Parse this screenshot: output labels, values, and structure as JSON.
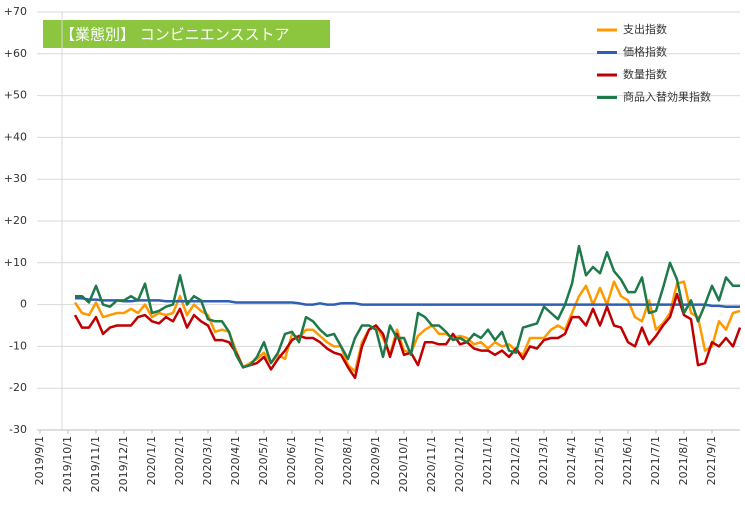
{
  "chart_data": {
    "type": "line",
    "title": "【業態別】 コンビニエンスストア",
    "categories": [
      "2019/9/1",
      null,
      null,
      null,
      "2019/10/1",
      null,
      null,
      null,
      "2019/11/1",
      null,
      null,
      null,
      "2019/12/1",
      null,
      null,
      null,
      "2020/1/1",
      null,
      null,
      null,
      "2020/2/1",
      null,
      null,
      null,
      "2020/3/1",
      null,
      null,
      null,
      "2020/4/1",
      null,
      null,
      null,
      "2020/5/1",
      null,
      null,
      null,
      "2020/6/1",
      null,
      null,
      null,
      "2020/7/1",
      null,
      null,
      null,
      "2020/8/1",
      null,
      null,
      null,
      "2020/9/1",
      null,
      null,
      null,
      "2020/10/1",
      null,
      null,
      null,
      "2020/11/1",
      null,
      null,
      null,
      "2020/12/1",
      null,
      null,
      null,
      "2021/1/1",
      null,
      null,
      null,
      "2021/2/1",
      null,
      null,
      null,
      "2021/3/1",
      null,
      null,
      null,
      "2021/4/1",
      null,
      null,
      null,
      "2021/5/1",
      null,
      null,
      null,
      "2021/6/1",
      null,
      null,
      null,
      "2021/7/1",
      null,
      null,
      null,
      "2021/8/1",
      null,
      null,
      null,
      "2021/9/1",
      null,
      null,
      null,
      null
    ],
    "series": [
      {
        "name": "支出指数",
        "color": "#ff9900",
        "values": [
          null,
          null,
          null,
          null,
          null,
          0.5,
          -2,
          -2.5,
          0.5,
          -3,
          -2.5,
          -2,
          -2,
          -1,
          -2,
          0,
          -3,
          -2,
          -2.5,
          -2,
          2,
          -2.5,
          0,
          -1.5,
          -2.5,
          -6.5,
          -6,
          -6.5,
          -11,
          -15,
          -14,
          -13,
          -11.5,
          -14,
          -12,
          -13,
          -7,
          -8,
          -6,
          -6,
          -7.5,
          -9,
          -10,
          -10,
          -14.5,
          -16,
          -9,
          -6,
          -5,
          -8,
          -12,
          -6,
          -11,
          -11.5,
          -7.5,
          -6,
          -5,
          -7,
          -7,
          -8,
          -7.5,
          -8,
          -9.5,
          -9,
          -10.5,
          -9,
          -10,
          -9.5,
          -11,
          -12,
          -8,
          -8,
          -8,
          -6,
          -5,
          -6,
          -2,
          2,
          4.5,
          0,
          4,
          0,
          5.5,
          2,
          1,
          -3,
          -4,
          1,
          -6,
          -4.5,
          -2,
          5,
          5.5,
          -2,
          -3,
          -11,
          -10,
          -4,
          -6,
          -2,
          -1.5
        ]
      },
      {
        "name": "価格指数",
        "color": "#2e5fb5",
        "values": [
          null,
          null,
          null,
          null,
          null,
          1.5,
          1.5,
          1.2,
          1.2,
          1,
          1,
          1,
          0.8,
          0.8,
          1,
          1,
          1,
          1,
          0.8,
          0.8,
          0.8,
          0.8,
          0.8,
          0.8,
          0.8,
          0.8,
          0.8,
          0.8,
          0.5,
          0.5,
          0.5,
          0.5,
          0.5,
          0.5,
          0.5,
          0.5,
          0.5,
          0.3,
          0,
          0,
          0.3,
          0,
          0,
          0.3,
          0.3,
          0.3,
          0,
          0,
          0,
          0,
          0,
          0,
          0,
          0,
          0,
          0,
          0,
          0,
          0,
          0,
          0,
          0,
          0,
          0,
          0,
          0,
          0,
          0,
          0,
          0,
          0,
          0,
          0,
          0,
          0,
          0,
          0,
          0,
          0,
          0,
          0,
          0,
          0,
          0,
          0,
          0,
          0,
          0,
          0,
          0,
          0,
          0,
          0,
          0,
          0,
          0,
          -0.3,
          -0.3,
          -0.5,
          -0.5,
          -0.5
        ]
      },
      {
        "name": "数量指数",
        "color": "#c00000",
        "values": [
          null,
          null,
          null,
          null,
          null,
          -2.5,
          -5.5,
          -5.5,
          -3,
          -7,
          -5.5,
          -5,
          -5,
          -5,
          -3,
          -2.5,
          -4,
          -4.5,
          -3,
          -4,
          -1,
          -5.5,
          -2.5,
          -4,
          -5,
          -8.5,
          -8.5,
          -9,
          -11.5,
          -15,
          -14.5,
          -14,
          -12.5,
          -15.5,
          -13,
          -11,
          -8.5,
          -7.5,
          -8,
          -8,
          -9,
          -10.5,
          -11.5,
          -12,
          -15,
          -17.5,
          -10,
          -6,
          -5,
          -7,
          -12.5,
          -7,
          -12,
          -11.5,
          -14.5,
          -9,
          -9,
          -9.5,
          -9.5,
          -7,
          -9.5,
          -9,
          -10.5,
          -11,
          -11,
          -12,
          -11,
          -12.5,
          -10.5,
          -13,
          -10,
          -10.5,
          -8.5,
          -8,
          -8,
          -7,
          -3,
          -3,
          -5,
          -1,
          -5,
          -0.5,
          -5,
          -5.5,
          -9,
          -10,
          -5.5,
          -9.5,
          -7.5,
          -5,
          -3,
          2.5,
          -2.5,
          -3.5,
          -14.5,
          -14,
          -9,
          -10,
          -8,
          -10,
          -5.5
        ]
      },
      {
        "name": "商品入替効果指数",
        "color": "#1e7a4a",
        "values": [
          null,
          null,
          null,
          null,
          null,
          2,
          2,
          0.5,
          4.5,
          0,
          -0.5,
          1,
          1,
          2,
          1,
          5,
          -2,
          -1.5,
          -0.5,
          0,
          7,
          0,
          2,
          1,
          -3.5,
          -4,
          -4,
          -6.5,
          -12,
          -15,
          -14.5,
          -12.5,
          -9,
          -14,
          -11.5,
          -7,
          -6.5,
          -9,
          -3,
          -4,
          -6,
          -7.5,
          -7,
          -10,
          -13,
          -8,
          -5,
          -5,
          -6,
          -12.5,
          -5,
          -8,
          -8,
          -12,
          -2,
          -3,
          -5,
          -5,
          -6.5,
          -8.5,
          -8,
          -9,
          -7,
          -8,
          -6,
          -8.5,
          -6.5,
          -11,
          -11.5,
          -5.5,
          -5,
          -4.5,
          -0.5,
          -2,
          -3.5,
          0,
          5,
          14,
          7,
          9,
          7.5,
          12.5,
          8,
          6,
          3,
          3,
          6.5,
          -2,
          -1.5,
          4,
          10,
          6,
          -2,
          1,
          -4,
          0,
          4.5,
          1,
          6.5,
          4.5,
          4.5
        ]
      }
    ],
    "ylim": [
      -30,
      70
    ],
    "yticks": [
      {
        "value": 70,
        "label": "+70"
      },
      {
        "value": 60,
        "label": "+60"
      },
      {
        "value": 50,
        "label": "+50"
      },
      {
        "value": 40,
        "label": "+40"
      },
      {
        "value": 30,
        "label": "+30"
      },
      {
        "value": 20,
        "label": "+20"
      },
      {
        "value": 10,
        "label": "+10"
      },
      0,
      -10,
      -20,
      -30
    ],
    "grid": true,
    "legend": "upper right"
  }
}
